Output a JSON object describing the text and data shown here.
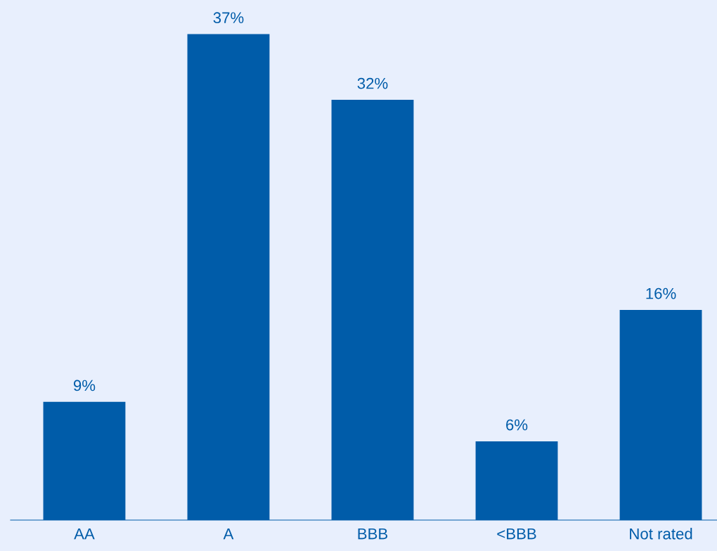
{
  "chart_data": {
    "type": "bar",
    "categories": [
      "AA",
      "A",
      "BBB",
      "<BBB",
      "Not rated"
    ],
    "values": [
      9,
      37,
      32,
      6,
      16
    ],
    "value_labels": [
      "9%",
      "37%",
      "32%",
      "6%",
      "16%"
    ],
    "color": "#005ca9",
    "ylim": [
      0,
      39.6
    ],
    "tick_labels": "x",
    "grid": false,
    "legend": false
  }
}
